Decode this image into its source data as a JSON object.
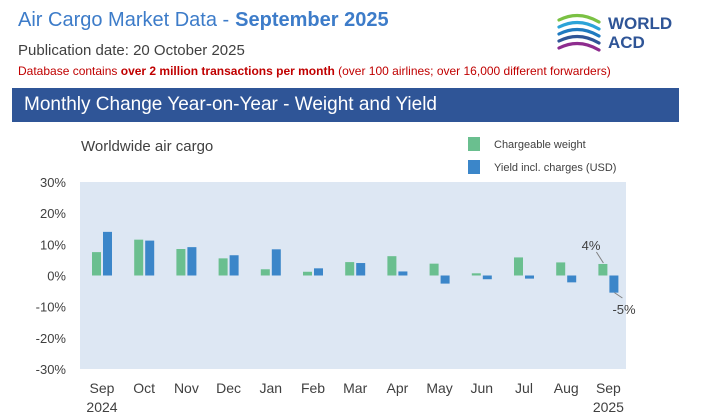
{
  "header": {
    "title": "Air Cargo Market Data -",
    "month": "September 2025",
    "publication": "Publication date: 20 October 2025",
    "db_prefix": "Database contains ",
    "db_bold": "over 2 million transactions per month",
    "db_suffix": " (over 100 airlines; over 16,000 different forwarders)",
    "logo_line1": "WORLD",
    "logo_line2": "ACD",
    "banner": "Monthly Change Year-on-Year - Weight and Yield"
  },
  "colors": {
    "weight": "#6abf8f",
    "yield": "#3b86c9",
    "plot_bg": "#dde7f3",
    "banner": "#2f5597",
    "title": "#3d7cc9",
    "red": "#c00000"
  },
  "chart_data": {
    "type": "bar",
    "title": "Worldwide air cargo",
    "categories": [
      "Sep",
      "Oct",
      "Nov",
      "Dec",
      "Jan",
      "Feb",
      "Mar",
      "Apr",
      "May",
      "Jun",
      "Jul",
      "Aug",
      "Sep"
    ],
    "year_labels": [
      "2024",
      "",
      "",
      "",
      "",
      "",
      "",
      "",
      "",
      "",
      "",
      "",
      "2025"
    ],
    "series": [
      {
        "name": "Chargeable weight",
        "values": [
          7.5,
          11.5,
          8.5,
          5.5,
          2,
          1.2,
          4.3,
          6.2,
          3.8,
          0.7,
          5.8,
          4.2,
          3.7
        ]
      },
      {
        "name": "Yield incl. charges (USD)",
        "values": [
          14,
          11.2,
          9.1,
          6.5,
          8.4,
          2.3,
          4,
          1.3,
          -2.6,
          -1.2,
          -1,
          -2.2,
          -5.5
        ]
      }
    ],
    "ylim": [
      -30,
      30
    ],
    "yticks": [
      -30,
      -20,
      -10,
      0,
      10,
      20,
      30
    ],
    "ytick_labels": [
      "-30%",
      "-20%",
      "-10%",
      "0%",
      "10%",
      "20%",
      "30%"
    ],
    "annotations": [
      "4%",
      "-5%"
    ],
    "legend_position": "top-right",
    "grid": false
  }
}
